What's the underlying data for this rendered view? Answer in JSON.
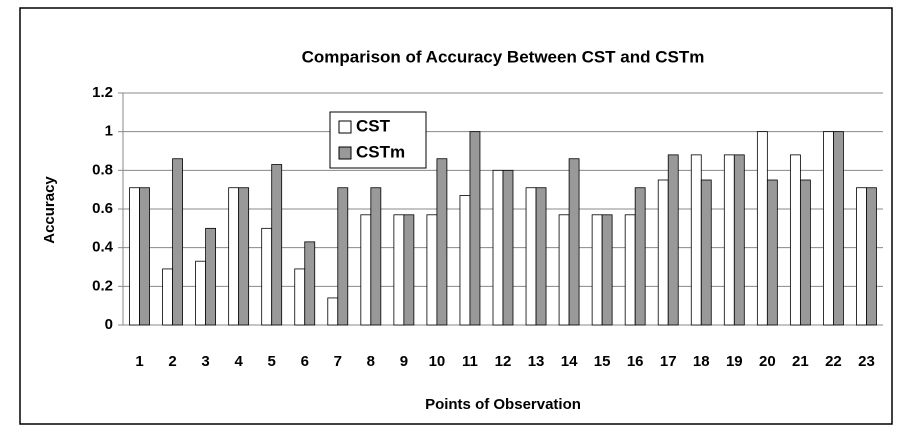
{
  "chart_data": {
    "type": "bar",
    "title": "Comparison of Accuracy Between CST and CSTm",
    "x_label": "Points of Observation",
    "y_label": "Accuracy",
    "categories": [
      "1",
      "2",
      "3",
      "4",
      "5",
      "6",
      "7",
      "8",
      "9",
      "10",
      "11",
      "12",
      "13",
      "14",
      "15",
      "16",
      "17",
      "18",
      "19",
      "20",
      "21",
      "22",
      "23"
    ],
    "series": [
      {
        "name": "CST",
        "color": "#ffffff",
        "values": [
          0.71,
          0.29,
          0.33,
          0.71,
          0.5,
          0.29,
          0.14,
          0.57,
          0.57,
          0.57,
          0.67,
          0.8,
          0.71,
          0.57,
          0.57,
          0.57,
          0.75,
          0.88,
          0.88,
          1,
          0.88,
          1,
          0.71
        ]
      },
      {
        "name": "CSTm",
        "color": "#999999",
        "values": [
          0.71,
          0.86,
          0.5,
          0.71,
          0.83,
          0.43,
          0.71,
          0.71,
          0.57,
          0.86,
          1,
          0.8,
          0.71,
          0.86,
          0.57,
          0.71,
          0.88,
          0.75,
          0.88,
          0.75,
          0.75,
          1,
          0.71
        ]
      }
    ],
    "ylim": [
      0,
      1.2
    ],
    "yticks": [
      0,
      0.2,
      0.4,
      0.6,
      0.8,
      1,
      1.2
    ],
    "grid": true
  }
}
